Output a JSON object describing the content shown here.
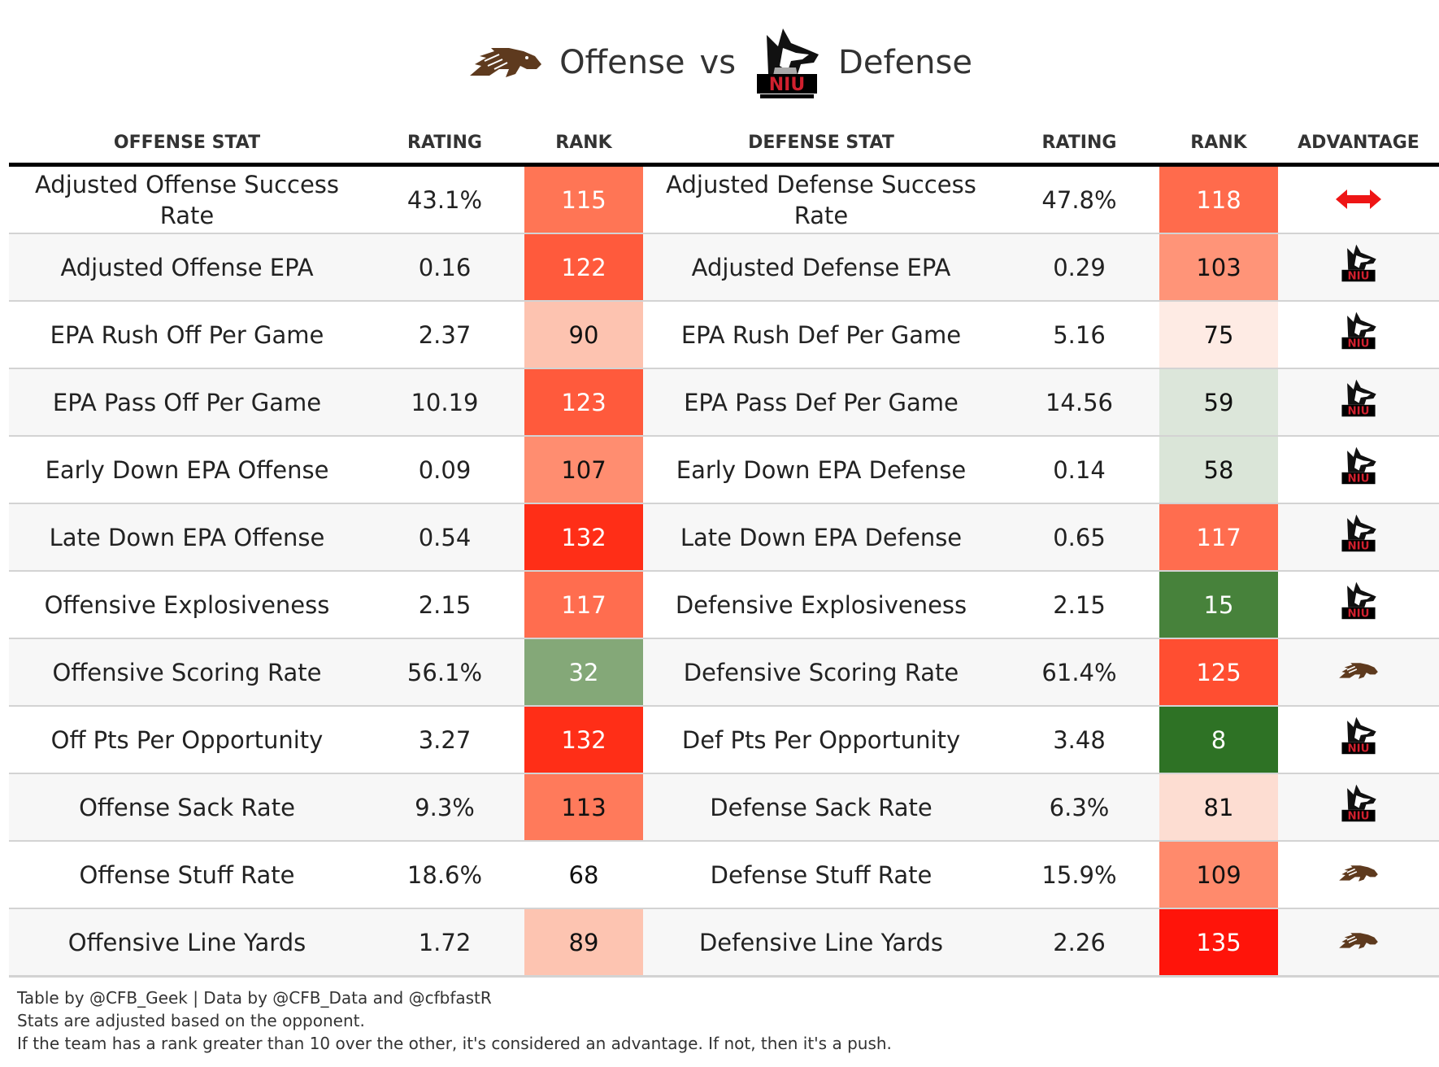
{
  "title": {
    "offense_team_logo": "western-michigan-bronco-logo",
    "offense_label": "Offense",
    "vs_label": "vs",
    "defense_team_logo": "niu-huskies-logo",
    "defense_label": "Defense"
  },
  "columns": {
    "offense_stat": "OFFENSE STAT",
    "offense_rating": "RATING",
    "offense_rank": "RANK",
    "defense_stat": "DEFENSE STAT",
    "defense_rating": "RATING",
    "defense_rank": "RANK",
    "advantage": "ADVANTAGE"
  },
  "rows": [
    {
      "off_stat": "Adjusted Offense Success Rate",
      "off_rating": "43.1%",
      "off_rank": "115",
      "off_color": "#ff7555",
      "off_text": "#ffffff",
      "def_stat": "Adjusted Defense Success Rate",
      "def_rating": "47.8%",
      "def_rank": "118",
      "def_color": "#ff6b4c",
      "def_text": "#ffffff",
      "advantage": "push"
    },
    {
      "off_stat": "Adjusted Offense EPA",
      "off_rating": "0.16",
      "off_rank": "122",
      "off_color": "#ff5a3c",
      "off_text": "#ffffff",
      "def_stat": "Adjusted Defense EPA",
      "def_rating": "0.29",
      "def_rank": "103",
      "def_color": "#ff9478",
      "def_text": "#111111",
      "advantage": "defense"
    },
    {
      "off_stat": "EPA Rush Off Per Game",
      "off_rating": "2.37",
      "off_rank": "90",
      "off_color": "#fdc3b0",
      "off_text": "#111111",
      "def_stat": "EPA Rush Def Per Game",
      "def_rating": "5.16",
      "def_rank": "75",
      "def_color": "#feebe4",
      "def_text": "#111111",
      "advantage": "defense"
    },
    {
      "off_stat": "EPA Pass Off Per Game",
      "off_rating": "10.19",
      "off_rank": "123",
      "off_color": "#ff5a3c",
      "off_text": "#ffffff",
      "def_stat": "EPA Pass Def Per Game",
      "def_rating": "14.56",
      "def_rank": "59",
      "def_color": "#dce6da",
      "def_text": "#111111",
      "advantage": "defense"
    },
    {
      "off_stat": "Early Down EPA Offense",
      "off_rating": "0.09",
      "off_rank": "107",
      "off_color": "#ff8d70",
      "off_text": "#111111",
      "def_stat": "Early Down EPA Defense",
      "def_rating": "0.14",
      "def_rank": "58",
      "def_color": "#dae5d8",
      "def_text": "#111111",
      "advantage": "defense"
    },
    {
      "off_stat": "Late Down EPA Offense",
      "off_rating": "0.54",
      "off_rank": "132",
      "off_color": "#ff2e17",
      "off_text": "#ffffff",
      "def_stat": "Late Down EPA Defense",
      "def_rating": "0.65",
      "def_rank": "117",
      "def_color": "#ff6d4f",
      "def_text": "#ffffff",
      "advantage": "defense"
    },
    {
      "off_stat": "Offensive Explosiveness",
      "off_rating": "2.15",
      "off_rank": "117",
      "off_color": "#ff6d4f",
      "off_text": "#ffffff",
      "def_stat": "Defensive Explosiveness",
      "def_rating": "2.15",
      "def_rank": "15",
      "def_color": "#47823b",
      "def_text": "#ffffff",
      "advantage": "defense"
    },
    {
      "off_stat": "Offensive Scoring Rate",
      "off_rating": "56.1%",
      "off_rank": "32",
      "off_color": "#84a878",
      "off_text": "#ffffff",
      "def_stat": "Defensive Scoring Rate",
      "def_rating": "61.4%",
      "def_rank": "125",
      "def_color": "#ff4e31",
      "def_text": "#ffffff",
      "advantage": "offense"
    },
    {
      "off_stat": "Off Pts Per Opportunity",
      "off_rating": "3.27",
      "off_rank": "132",
      "off_color": "#ff2e17",
      "off_text": "#ffffff",
      "def_stat": "Def Pts Per Opportunity",
      "def_rating": "3.48",
      "def_rank": "8",
      "def_color": "#2e7225",
      "def_text": "#ffffff",
      "advantage": "defense"
    },
    {
      "off_stat": "Offense Sack Rate",
      "off_rating": "9.3%",
      "off_rank": "113",
      "off_color": "#ff7a5b",
      "off_text": "#111111",
      "def_stat": "Defense Sack Rate",
      "def_rating": "6.3%",
      "def_rank": "81",
      "def_color": "#fdddd2",
      "def_text": "#111111",
      "advantage": "defense"
    },
    {
      "off_stat": "Offense Stuff Rate",
      "off_rating": "18.6%",
      "off_rank": "68",
      "off_color": "#ffffff",
      "off_text": "#111111",
      "def_stat": "Defense Stuff Rate",
      "def_rating": "15.9%",
      "def_rank": "109",
      "def_color": "#ff8a6c",
      "def_text": "#111111",
      "advantage": "offense"
    },
    {
      "off_stat": "Offensive Line Yards",
      "off_rating": "1.72",
      "off_rank": "89",
      "off_color": "#fdc4b1",
      "off_text": "#111111",
      "def_stat": "Defensive Line Yards",
      "def_rating": "2.26",
      "def_rank": "135",
      "def_color": "#ff140a",
      "def_text": "#ffffff",
      "advantage": "offense"
    }
  ],
  "footer": {
    "line1": "Table by @CFB_Geek | Data by @CFB_Data and @cfbfastR",
    "line2": "Stats are adjusted based on the opponent.",
    "line3": "If the team has a rank greater than 10 over the other, it's considered an advantage. If not, then it's a push."
  },
  "colors": {
    "push_arrow": "#ee1515",
    "bronco_brown": "#5e3a1e",
    "niu_red": "#d0202e"
  }
}
